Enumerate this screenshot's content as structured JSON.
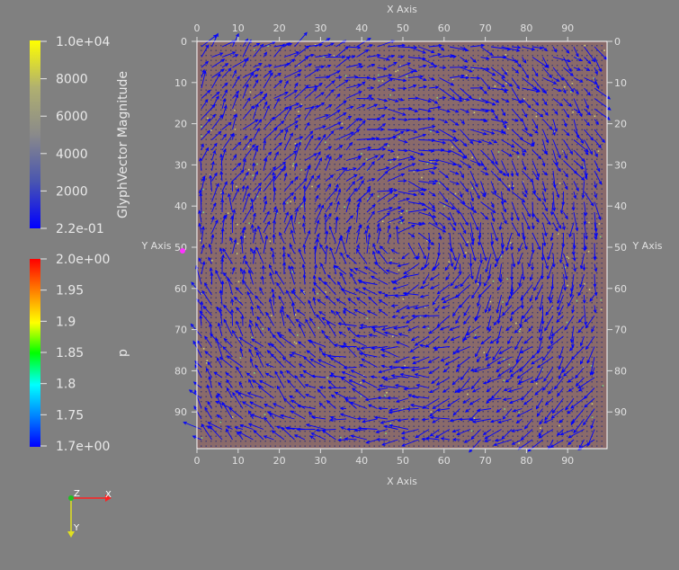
{
  "axes": {
    "x_title_top": "X Axis",
    "x_title_bottom": "X Axis",
    "y_title_left": "Y Axis",
    "y_title_right": "Y Axis",
    "x_ticks": [
      "0",
      "10",
      "20",
      "30",
      "40",
      "50",
      "60",
      "70",
      "80",
      "90"
    ],
    "y_ticks": [
      "0",
      "10",
      "20",
      "30",
      "40",
      "50",
      "60",
      "70",
      "80",
      "90"
    ]
  },
  "colorbar_glyph": {
    "title": "GlyphVector Magnitude",
    "labels": [
      "1.0e+04",
      "8000",
      "6000",
      "4000",
      "2000",
      "2.2e-01"
    ],
    "colors": [
      "#ffff00",
      "#b0b070",
      "#8a8a8a",
      "#4a56b0",
      "#0000ff"
    ]
  },
  "colorbar_p": {
    "title": "p",
    "labels": [
      "2.0e+00",
      "1.95",
      "1.9",
      "1.85",
      "1.8",
      "1.75",
      "1.7e+00"
    ],
    "colors": [
      "#ff0000",
      "#ff8000",
      "#ffff00",
      "#00ff00",
      "#00ffff",
      "#0080ff",
      "#0000ff"
    ]
  },
  "orientation": {
    "x_label": "X",
    "y_label": "Y",
    "z_label": "Z"
  },
  "colors": {
    "background": "#808080",
    "grid_fill": "#8a6a6a",
    "glyph": "#0000ff",
    "text": "#e8e8e8"
  }
}
